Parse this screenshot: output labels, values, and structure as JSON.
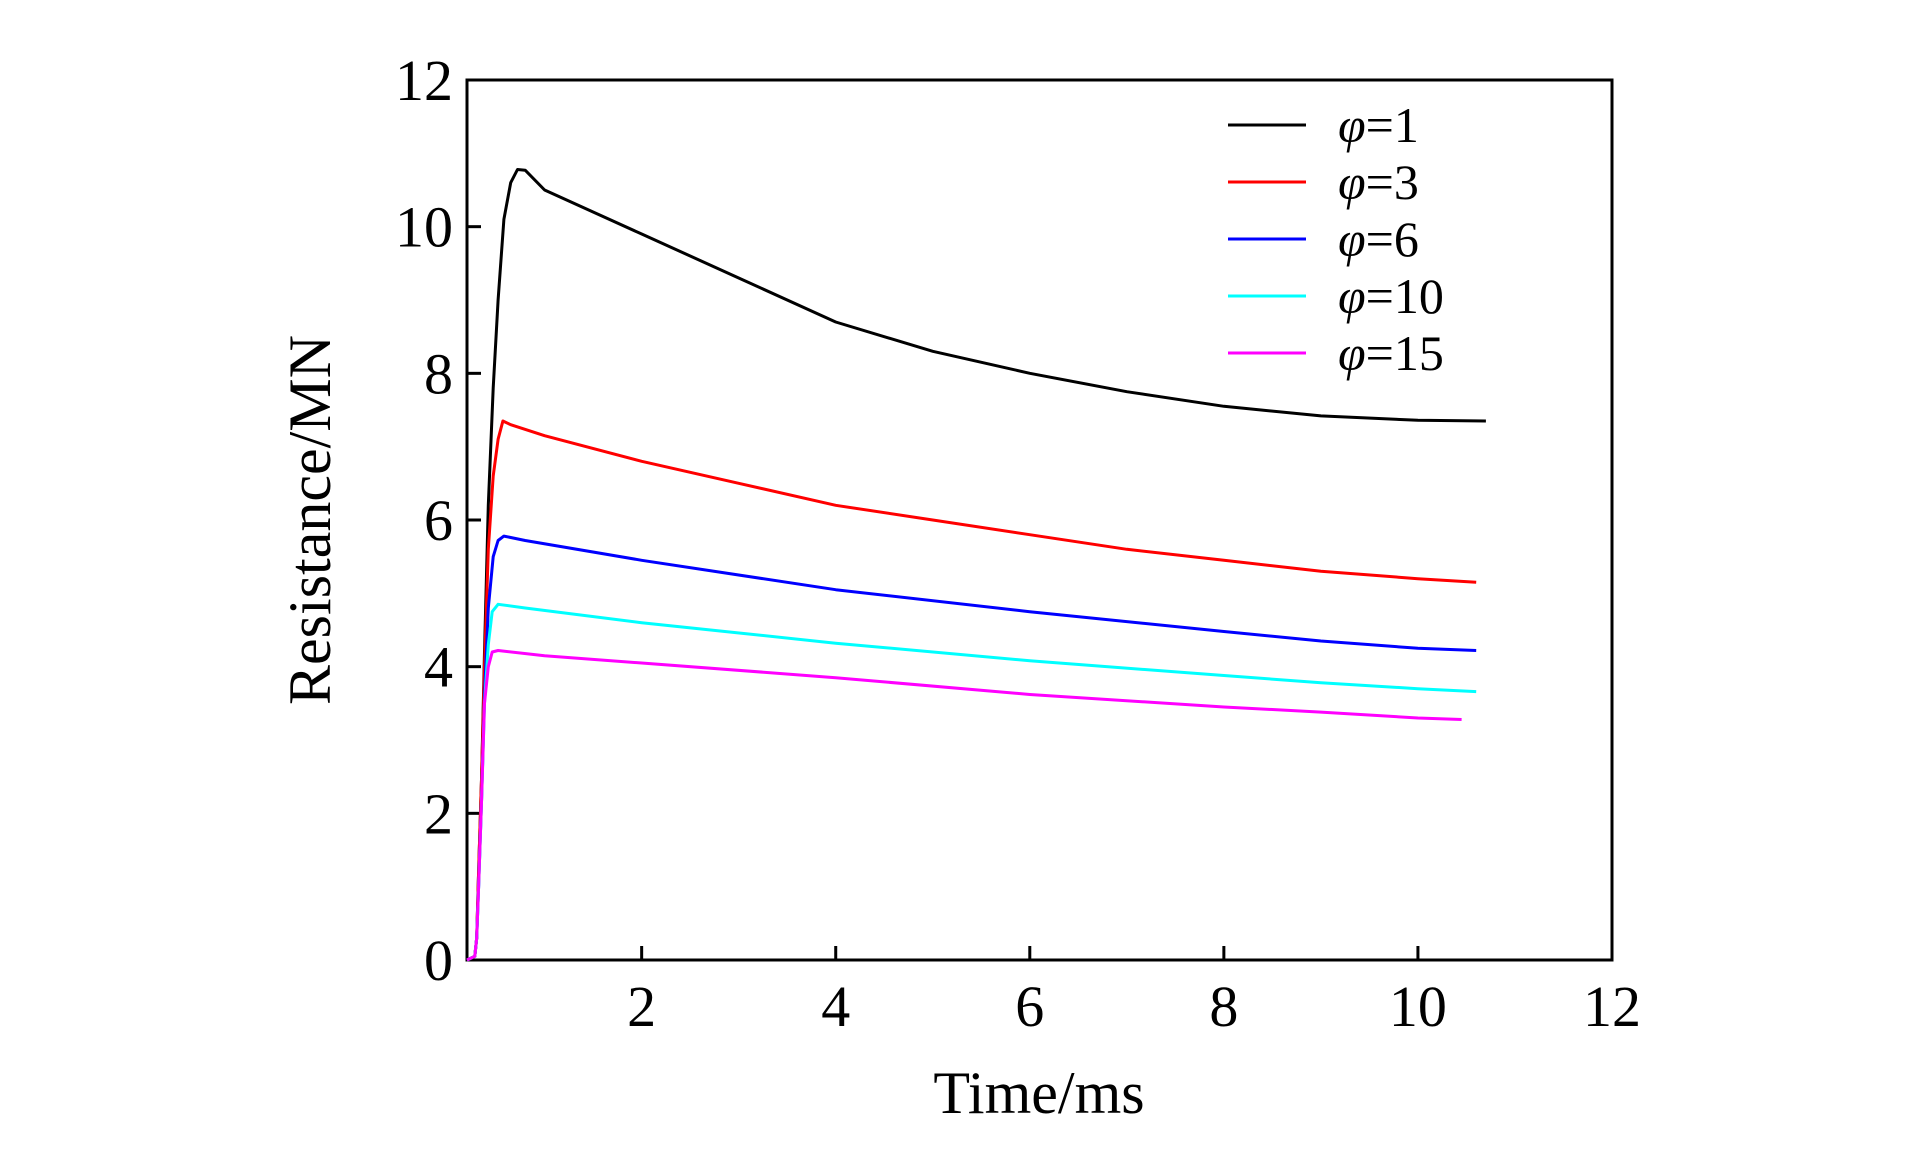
{
  "chart_data": {
    "type": "line",
    "title": "",
    "xlabel": "Time/ms",
    "ylabel": "Resistance/MN",
    "xlim": [
      0.2,
      12
    ],
    "ylim": [
      0,
      12
    ],
    "xticks": [
      2,
      4,
      6,
      8,
      10,
      12
    ],
    "yticks": [
      0,
      2,
      4,
      6,
      8,
      10,
      12
    ],
    "legend_position": "top-right",
    "series": [
      {
        "name": "φ=1",
        "symbol": "φ",
        "value_label": "=1",
        "color": "#000000",
        "points": [
          [
            0.2,
            0
          ],
          [
            0.28,
            0.05
          ],
          [
            0.3,
            0.3
          ],
          [
            0.32,
            1.2
          ],
          [
            0.35,
            2.5
          ],
          [
            0.38,
            4.2
          ],
          [
            0.42,
            6.2
          ],
          [
            0.47,
            7.8
          ],
          [
            0.52,
            9.0
          ],
          [
            0.58,
            10.1
          ],
          [
            0.65,
            10.6
          ],
          [
            0.72,
            10.78
          ],
          [
            0.8,
            10.77
          ],
          [
            1.0,
            10.5
          ],
          [
            1.5,
            10.2
          ],
          [
            2.0,
            9.9
          ],
          [
            3.0,
            9.3
          ],
          [
            4.0,
            8.7
          ],
          [
            5.0,
            8.3
          ],
          [
            6.0,
            8.0
          ],
          [
            7.0,
            7.75
          ],
          [
            8.0,
            7.55
          ],
          [
            9.0,
            7.42
          ],
          [
            10.0,
            7.36
          ],
          [
            10.7,
            7.35
          ]
        ]
      },
      {
        "name": "φ=3",
        "symbol": "φ",
        "value_label": "=3",
        "color": "#ff0000",
        "points": [
          [
            0.2,
            0
          ],
          [
            0.28,
            0.05
          ],
          [
            0.3,
            0.3
          ],
          [
            0.32,
            1.2
          ],
          [
            0.35,
            2.5
          ],
          [
            0.38,
            4.0
          ],
          [
            0.42,
            5.6
          ],
          [
            0.47,
            6.6
          ],
          [
            0.52,
            7.1
          ],
          [
            0.57,
            7.35
          ],
          [
            0.65,
            7.3
          ],
          [
            1.0,
            7.15
          ],
          [
            2.0,
            6.8
          ],
          [
            3.0,
            6.5
          ],
          [
            4.0,
            6.2
          ],
          [
            5.0,
            6.0
          ],
          [
            6.0,
            5.8
          ],
          [
            7.0,
            5.6
          ],
          [
            8.0,
            5.45
          ],
          [
            9.0,
            5.3
          ],
          [
            10.0,
            5.2
          ],
          [
            10.6,
            5.15
          ]
        ]
      },
      {
        "name": "φ=6",
        "symbol": "φ",
        "value_label": "=6",
        "color": "#0000ff",
        "points": [
          [
            0.2,
            0
          ],
          [
            0.28,
            0.05
          ],
          [
            0.3,
            0.3
          ],
          [
            0.32,
            1.0
          ],
          [
            0.35,
            2.2
          ],
          [
            0.38,
            3.6
          ],
          [
            0.42,
            4.8
          ],
          [
            0.47,
            5.5
          ],
          [
            0.52,
            5.72
          ],
          [
            0.58,
            5.78
          ],
          [
            0.8,
            5.72
          ],
          [
            2.0,
            5.45
          ],
          [
            4.0,
            5.05
          ],
          [
            6.0,
            4.75
          ],
          [
            8.0,
            4.48
          ],
          [
            9.0,
            4.35
          ],
          [
            10.0,
            4.25
          ],
          [
            10.6,
            4.22
          ]
        ]
      },
      {
        "name": "φ=10",
        "symbol": "φ",
        "value_label": "=10",
        "color": "#00ffff",
        "points": [
          [
            0.2,
            0
          ],
          [
            0.28,
            0.05
          ],
          [
            0.3,
            0.3
          ],
          [
            0.32,
            1.0
          ],
          [
            0.35,
            2.2
          ],
          [
            0.38,
            3.5
          ],
          [
            0.42,
            4.3
          ],
          [
            0.46,
            4.75
          ],
          [
            0.52,
            4.85
          ],
          [
            0.8,
            4.8
          ],
          [
            2.0,
            4.6
          ],
          [
            4.0,
            4.32
          ],
          [
            6.0,
            4.08
          ],
          [
            8.0,
            3.88
          ],
          [
            9.0,
            3.78
          ],
          [
            10.0,
            3.7
          ],
          [
            10.6,
            3.66
          ]
        ]
      },
      {
        "name": "φ=15",
        "symbol": "φ",
        "value_label": "=15",
        "color": "#ff00ff",
        "points": [
          [
            0.2,
            0
          ],
          [
            0.28,
            0.05
          ],
          [
            0.3,
            0.3
          ],
          [
            0.32,
            1.0
          ],
          [
            0.35,
            2.2
          ],
          [
            0.38,
            3.5
          ],
          [
            0.42,
            4.0
          ],
          [
            0.46,
            4.2
          ],
          [
            0.52,
            4.22
          ],
          [
            1.0,
            4.15
          ],
          [
            2.0,
            4.05
          ],
          [
            4.0,
            3.85
          ],
          [
            6.0,
            3.62
          ],
          [
            8.0,
            3.45
          ],
          [
            9.0,
            3.38
          ],
          [
            10.0,
            3.3
          ],
          [
            10.45,
            3.28
          ]
        ]
      }
    ]
  }
}
